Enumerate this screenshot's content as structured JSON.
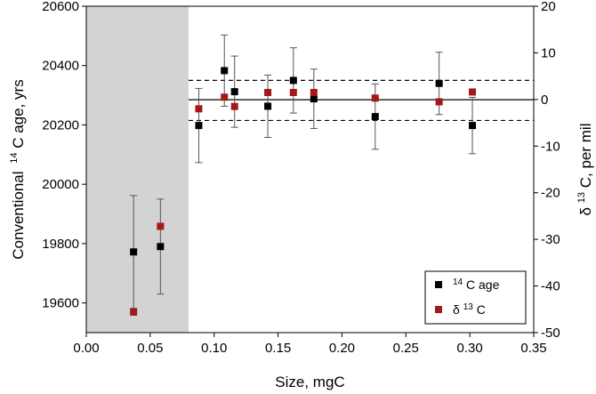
{
  "chart_data": {
    "type": "scatter",
    "x": {
      "label": "Size, mgC",
      "range": [
        0.0,
        0.35
      ],
      "ticks": [
        "0.00",
        "0.05",
        "0.10",
        "0.15",
        "0.20",
        "0.25",
        "0.30",
        "0.35"
      ]
    },
    "y_left": {
      "label": "Conventional",
      "label_sup": "14",
      "label_rest": "C age, yrs",
      "range": [
        19500,
        20600
      ],
      "ticks": [
        "19600",
        "19800",
        "20000",
        "20200",
        "20400",
        "20600"
      ]
    },
    "y_right": {
      "label_prefix": "δ",
      "label_sup": "13",
      "label_rest": "C, per mil",
      "range": [
        -50,
        20
      ],
      "ticks": [
        "-50",
        "-40",
        "-30",
        "-20",
        "-10",
        "0",
        "10",
        "20"
      ]
    },
    "shaded_region_x": [
      0.0,
      0.08
    ],
    "mean_line_age": 20285,
    "dashed_lines_age": [
      20350,
      20215
    ],
    "series": [
      {
        "name": "14C age",
        "legend_sup": "14",
        "legend_rest": "C age",
        "axis": "left",
        "color": "#000000",
        "points": [
          {
            "x": 0.037,
            "y": 19772,
            "err": 190
          },
          {
            "x": 0.058,
            "y": 19790,
            "err": 160
          },
          {
            "x": 0.088,
            "y": 20198,
            "err": 125
          },
          {
            "x": 0.108,
            "y": 20383,
            "err": 120
          },
          {
            "x": 0.116,
            "y": 20312,
            "err": 120
          },
          {
            "x": 0.142,
            "y": 20263,
            "err": 105
          },
          {
            "x": 0.162,
            "y": 20350,
            "err": 110
          },
          {
            "x": 0.178,
            "y": 20288,
            "err": 100
          },
          {
            "x": 0.226,
            "y": 20228,
            "err": 110
          },
          {
            "x": 0.276,
            "y": 20340,
            "err": 105
          },
          {
            "x": 0.302,
            "y": 20198,
            "err": 95
          }
        ]
      },
      {
        "name": "δ13C",
        "legend_prefix": "δ",
        "legend_sup": "13",
        "legend_rest": "C",
        "axis": "right",
        "color": "#a31818",
        "points": [
          {
            "x": 0.037,
            "y": -45.6
          },
          {
            "x": 0.058,
            "y": -27.2
          },
          {
            "x": 0.088,
            "y": -2.0
          },
          {
            "x": 0.108,
            "y": 0.5
          },
          {
            "x": 0.116,
            "y": -1.5
          },
          {
            "x": 0.142,
            "y": 1.5
          },
          {
            "x": 0.162,
            "y": 1.5
          },
          {
            "x": 0.178,
            "y": 1.5
          },
          {
            "x": 0.226,
            "y": 0.3
          },
          {
            "x": 0.276,
            "y": -0.5
          },
          {
            "x": 0.302,
            "y": 1.6
          }
        ]
      }
    ],
    "legend_position": "bottom-right"
  }
}
